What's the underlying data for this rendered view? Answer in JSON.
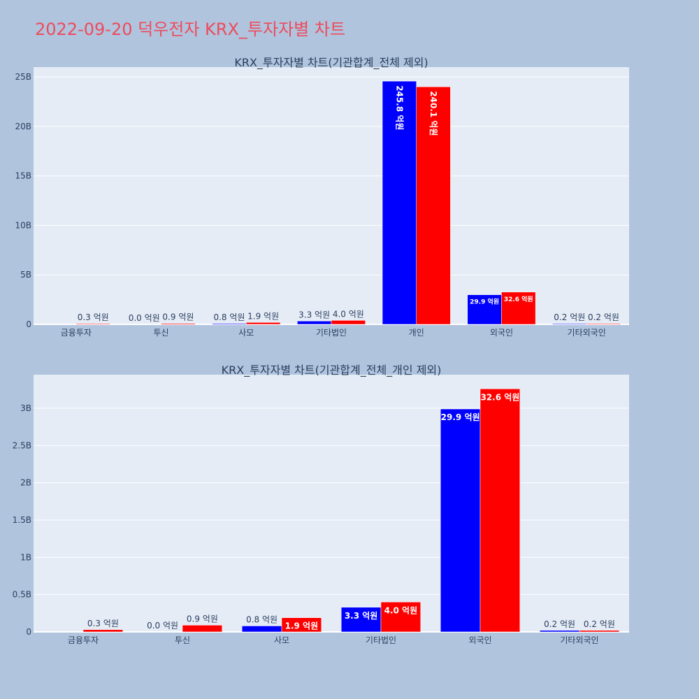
{
  "page_title": "2022-09-20 덕우전자 KRX_투자자별 차트",
  "colors": {
    "series_a": "#0000ff",
    "series_b": "#ff0000",
    "plot_bg": "#e5ecf6",
    "page_bg": "#b0c4de",
    "title": "#ee4b5c"
  },
  "chart_data": [
    {
      "type": "bar",
      "title": "KRX_투자자별 차트(기관합계_전체 제외)",
      "categories": [
        "금융투자",
        "투신",
        "사모",
        "기타법인",
        "개인",
        "외국인",
        "기타외국인"
      ],
      "ylim": [
        0,
        26000000000
      ],
      "yticks": [
        0,
        5000000000,
        10000000000,
        15000000000,
        20000000000,
        25000000000
      ],
      "ytick_labels": [
        "0",
        "5B",
        "10B",
        "15B",
        "20B",
        "25B"
      ],
      "series": [
        {
          "values": [
            0,
            0,
            80000000,
            330000000,
            24580000000,
            2990000000,
            20000000
          ],
          "labels": [
            "",
            "0.0 억원",
            "0.8 억원",
            "3.3 억원",
            "245.8 억원",
            "29.9 억원",
            "0.2 억원"
          ]
        },
        {
          "values": [
            30000000,
            90000000,
            190000000,
            400000000,
            24010000000,
            3260000000,
            20000000
          ],
          "labels": [
            "0.3 억원",
            "0.9 억원",
            "1.9 억원",
            "4.0 억원",
            "240.1 억원",
            "32.6 억원",
            "0.2 억원"
          ]
        }
      ]
    },
    {
      "type": "bar",
      "title": "KRX_투자자별 차트(기관합계_전체_개인 제외)",
      "categories": [
        "금융투자",
        "투신",
        "사모",
        "기타법인",
        "외국인",
        "기타외국인"
      ],
      "ylim": [
        0,
        3450000000
      ],
      "yticks": [
        0,
        500000000,
        1000000000,
        1500000000,
        2000000000,
        2500000000,
        3000000000
      ],
      "ytick_labels": [
        "0",
        "0.5B",
        "1B",
        "1.5B",
        "2B",
        "2.5B",
        "3B"
      ],
      "series": [
        {
          "values": [
            0,
            0,
            80000000,
            330000000,
            2990000000,
            20000000
          ],
          "labels": [
            "",
            "0.0 억원",
            "0.8 억원",
            "3.3 억원",
            "29.9 억원",
            "0.2 억원"
          ]
        },
        {
          "values": [
            30000000,
            90000000,
            190000000,
            400000000,
            3260000000,
            20000000
          ],
          "labels": [
            "0.3 억원",
            "0.9 억원",
            "1.9 억원",
            "4.0 억원",
            "32.6 억원",
            "0.2 억원"
          ]
        }
      ]
    }
  ]
}
